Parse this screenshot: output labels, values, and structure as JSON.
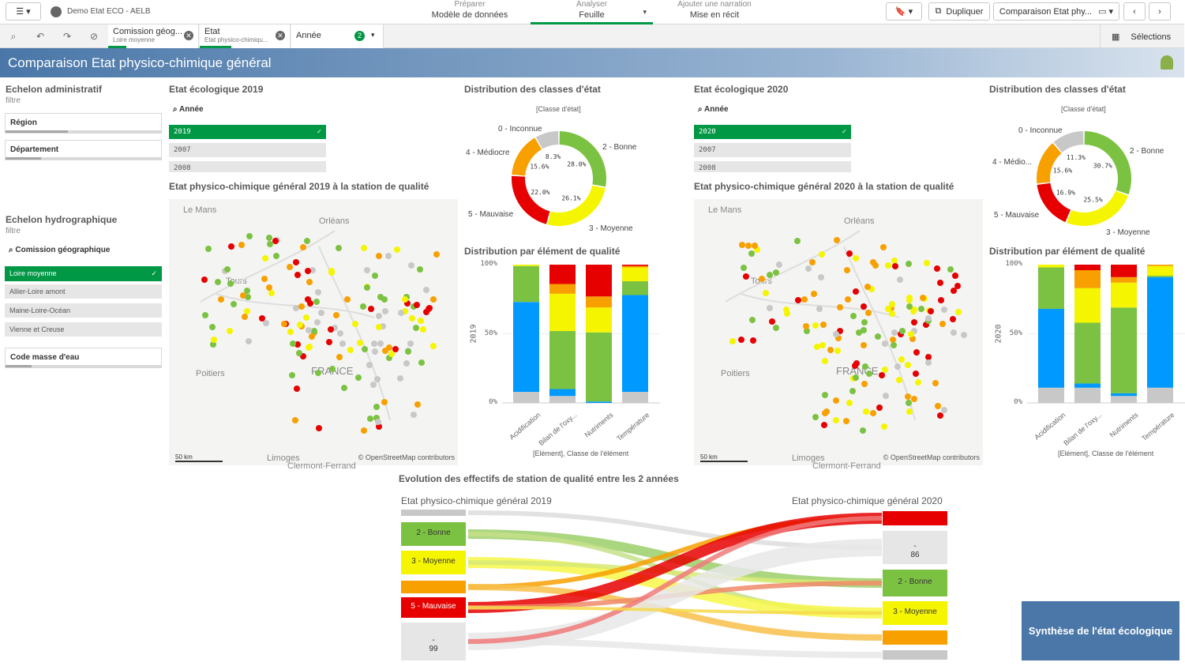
{
  "topbar": {
    "app_title": "Demo Etat ECO - AELB",
    "nav": [
      {
        "small": "Préparer",
        "big": "Modèle de données"
      },
      {
        "small": "Analyser",
        "big": "Feuille"
      },
      {
        "small": "Ajouter une narration",
        "big": "Mise en récit"
      }
    ],
    "duplicate_label": "Dupliquer",
    "sheet_label": "Comparaison Etat phy..."
  },
  "selections": {
    "chips": [
      {
        "title": "Comission géog...",
        "value": "Loire moyenne"
      },
      {
        "title": "Etat",
        "value": "Etat physico-chimiqu..."
      },
      {
        "title": "Année",
        "badge": "2"
      }
    ],
    "label": "Sélections"
  },
  "sheet_title": "Comparaison Etat physico-chimique général",
  "left": {
    "admin_title": "Echelon administratif",
    "admin_sub": "filtre",
    "region": "Région",
    "departement": "Département",
    "hydro_title": "Echelon hydrographique",
    "hydro_sub": "filtre",
    "commission_label": "Comission géographique",
    "commission_items": [
      "Loire moyenne",
      "Allier-Loire amont",
      "Maine-Loire-Océan",
      "Vienne et Creuse"
    ],
    "code_label": "Code masse d'eau"
  },
  "panels": [
    {
      "eco_title": "Etat écologique 2019",
      "year_label": "Année",
      "years": [
        "2019",
        "2007",
        "2008"
      ],
      "map_title": "Etat physico-chimique général 2019 à la station de qualité",
      "dist_title": "Distribution des classes d'état",
      "dist_sub": "[Classe d'état]",
      "donut_labels": [
        "0 - Inconnue",
        "2 - Bonne",
        "3 - Moyenne",
        "5 - Mauvaise",
        "4 - Médiocre"
      ],
      "elem_title": "Distribution par élément de qualité",
      "elem_ylabel": "2019",
      "elem_xlabel": "[Elément], Classe de l'élément"
    },
    {
      "eco_title": "Etat écologique 2020",
      "year_label": "Année",
      "years": [
        "2020",
        "2007",
        "2008"
      ],
      "map_title": "Etat physico-chimique général 2020 à la station de qualité",
      "dist_title": "Distribution des classes d'état",
      "dist_sub": "[Classe d'état]",
      "donut_labels": [
        "0 - Inconnue",
        "2 - Bonne",
        "3 - Moyenne",
        "5 - Mauvaise",
        "4 - Médio..."
      ],
      "elem_title": "Distribution par élément de qualité",
      "elem_ylabel": "2020",
      "elem_xlabel": "[Elément], Classe de l'élément"
    }
  ],
  "map": {
    "cities": [
      "Le Mans",
      "Orléans",
      "Tours",
      "Poitiers",
      "FRANCE",
      "Limoges",
      "Clermont-Ferrand"
    ],
    "scale": "50 km",
    "attribution": "© OpenStreetMap contributors"
  },
  "chart_data": [
    {
      "type": "pie",
      "title": "Distribution des classes d'état",
      "year": "2019",
      "categories": [
        "0 - Inconnue",
        "2 - Bonne",
        "3 - Moyenne",
        "5 - Mauvaise",
        "4 - Médiocre"
      ],
      "values": [
        8.3,
        28.0,
        26.1,
        22.0,
        15.6
      ],
      "colors": [
        "#c8c8c8",
        "#7cc242",
        "#f5f500",
        "#e60000",
        "#f7a000"
      ]
    },
    {
      "type": "pie",
      "title": "Distribution des classes d'état",
      "year": "2020",
      "categories": [
        "0 - Inconnue",
        "2 - Bonne",
        "3 - Moyenne",
        "5 - Mauvaise",
        "4 - Médio..."
      ],
      "values": [
        11.3,
        30.7,
        25.5,
        16.9,
        15.6
      ],
      "colors": [
        "#c8c8c8",
        "#7cc242",
        "#f5f500",
        "#e60000",
        "#f7a000"
      ]
    },
    {
      "type": "bar",
      "stacked": true,
      "title": "Distribution par élément de qualité",
      "year": "2019",
      "categories": [
        "Acidification",
        "Bilan de l'oxy...",
        "Nutriments",
        "Température"
      ],
      "yticks": [
        "0%",
        "50%",
        "100%"
      ],
      "series": [
        {
          "color": "#c8c8c8",
          "values": [
            8,
            5,
            0,
            8
          ]
        },
        {
          "color": "#0099ff",
          "values": [
            65,
            5,
            1,
            70
          ]
        },
        {
          "color": "#7cc242",
          "values": [
            26,
            42,
            50,
            10
          ]
        },
        {
          "color": "#f5f500",
          "values": [
            1,
            27,
            18,
            10
          ]
        },
        {
          "color": "#f7a000",
          "values": [
            0,
            7,
            8,
            1
          ]
        },
        {
          "color": "#e60000",
          "values": [
            0,
            14,
            23,
            1
          ]
        }
      ]
    },
    {
      "type": "bar",
      "stacked": true,
      "title": "Distribution par élément de qualité",
      "year": "2020",
      "categories": [
        "Acidification",
        "Bilan de l'oxy...",
        "Nutriments",
        "Température"
      ],
      "yticks": [
        "0%",
        "50%",
        "100%"
      ],
      "series": [
        {
          "color": "#c8c8c8",
          "values": [
            11,
            11,
            5,
            11
          ]
        },
        {
          "color": "#0099ff",
          "values": [
            57,
            3,
            2,
            80
          ]
        },
        {
          "color": "#7cc242",
          "values": [
            30,
            44,
            62,
            1
          ]
        },
        {
          "color": "#f5f500",
          "values": [
            2,
            25,
            18,
            7
          ]
        },
        {
          "color": "#f7a000",
          "values": [
            0,
            13,
            4,
            1
          ]
        },
        {
          "color": "#e60000",
          "values": [
            0,
            4,
            9,
            0
          ]
        }
      ]
    }
  ],
  "sankey": {
    "title": "Evolution des effectifs de station de qualité entre les 2 années",
    "left_title": "Etat physico-chimique général 2019",
    "right_title": "Etat physico-chimique général 2020",
    "left_nodes": [
      {
        "label": "",
        "color": "#c8c8c8"
      },
      {
        "label": "2 - Bonne",
        "color": "#7cc242"
      },
      {
        "label": "3 - Moyenne",
        "color": "#f5f500"
      },
      {
        "label": "",
        "color": "#f7a000"
      },
      {
        "label": "5 - Mauvaise",
        "color": "#e60000"
      },
      {
        "label": "-",
        "value": "99",
        "color": "#e6e6e6"
      }
    ],
    "right_nodes": [
      {
        "label": "",
        "color": "#e60000"
      },
      {
        "label": "-",
        "value": "86",
        "color": "#e6e6e6"
      },
      {
        "label": "2 - Bonne",
        "color": "#7cc242"
      },
      {
        "label": "3 - Moyenne",
        "color": "#f5f500"
      },
      {
        "label": "",
        "color": "#f7a000"
      },
      {
        "label": "",
        "color": "#c8c8c8"
      }
    ]
  },
  "synthese_button": "Synthèse de l'état écologique"
}
